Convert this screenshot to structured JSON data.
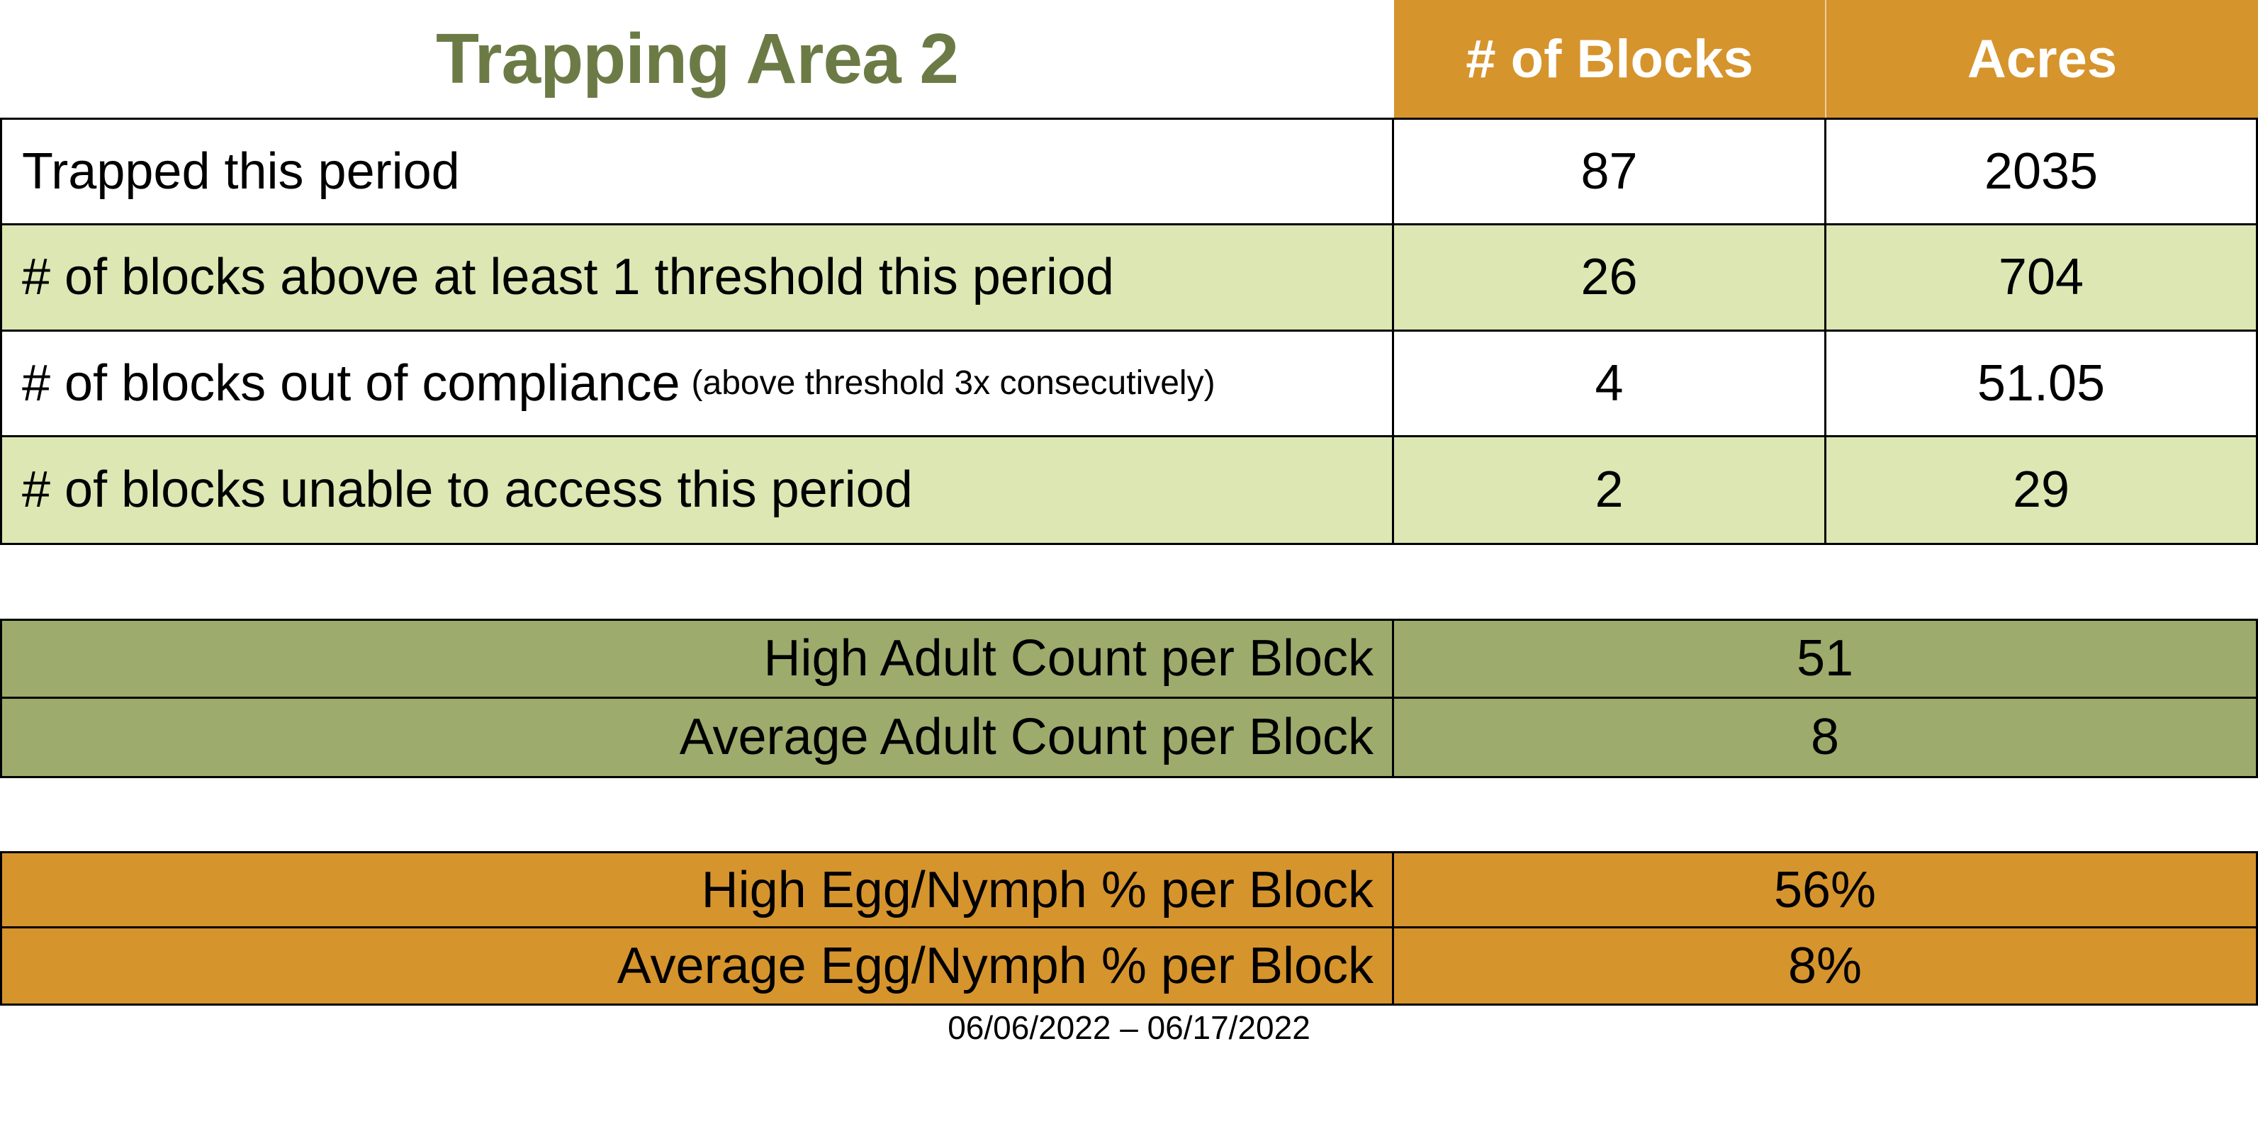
{
  "title": "Trapping Area 2",
  "colors": {
    "title_green": "#6C7B46",
    "header_orange": "#D6942D",
    "row_light_green": "#DCE7B3",
    "adult_olive": "#9DAB6C",
    "egg_orange": "#D6942D",
    "border_black": "#000000",
    "header_text_white": "#FFFFFF"
  },
  "main_table": {
    "columns": {
      "blocks": "# of Blocks",
      "acres": "Acres"
    },
    "rows": [
      {
        "label": "Trapped this period",
        "note": "",
        "blocks": "87",
        "acres": "2035"
      },
      {
        "label": "# of blocks above at least 1 threshold this period",
        "note": "",
        "blocks": "26",
        "acres": "704"
      },
      {
        "label": "# of blocks out of compliance",
        "note": "(above threshold 3x consecutively)",
        "blocks": "4",
        "acres": "51.05"
      },
      {
        "label": "# of blocks unable to access this period",
        "note": "",
        "blocks": "2",
        "acres": "29"
      }
    ]
  },
  "adult_table": {
    "rows": [
      {
        "label": "High Adult Count per Block",
        "value": "51"
      },
      {
        "label": "Average Adult Count per Block",
        "value": "8"
      }
    ]
  },
  "egg_table": {
    "rows": [
      {
        "label": "High Egg/Nymph % per Block",
        "value": "56%"
      },
      {
        "label": "Average Egg/Nymph % per Block",
        "value": "8%"
      }
    ]
  },
  "footer": {
    "date_range": "06/06/2022 – 06/17/2022"
  }
}
